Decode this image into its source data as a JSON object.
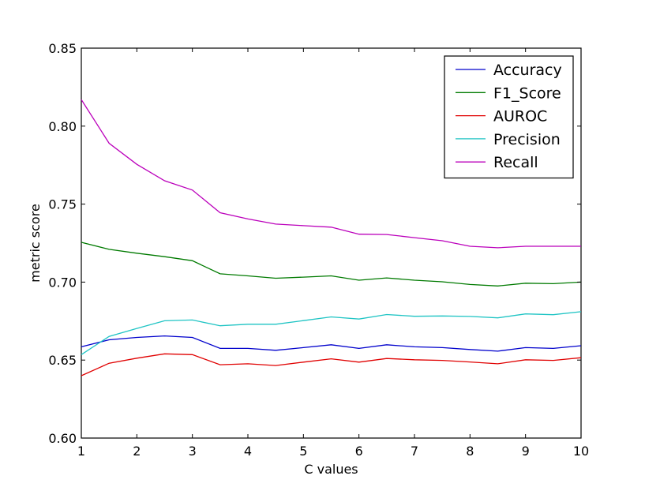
{
  "chart_data": {
    "type": "line",
    "xlabel": "C values",
    "ylabel": "metric score",
    "xlim": [
      1,
      10
    ],
    "ylim": [
      0.6,
      0.85
    ],
    "xticks": [
      1,
      2,
      3,
      4,
      5,
      6,
      7,
      8,
      9,
      10
    ],
    "yticks": [
      "0.60",
      "0.65",
      "0.70",
      "0.75",
      "0.80",
      "0.85"
    ],
    "grid": false,
    "legend_position": "top-right",
    "x": [
      1,
      1.5,
      2,
      2.5,
      3,
      3.5,
      4,
      4.5,
      5,
      5.5,
      6,
      6.5,
      7,
      7.5,
      8,
      8.5,
      9,
      9.5,
      10
    ],
    "series": [
      {
        "name": "Accuracy",
        "color": "#0000cc",
        "values": [
          0.6585,
          0.663,
          0.6645,
          0.6655,
          0.6645,
          0.6575,
          0.6575,
          0.6563,
          0.658,
          0.6598,
          0.6575,
          0.6598,
          0.6585,
          0.658,
          0.6568,
          0.6557,
          0.658,
          0.6575,
          0.6592
        ]
      },
      {
        "name": "F1_Score",
        "color": "#007a00",
        "values": [
          0.7255,
          0.721,
          0.7185,
          0.7163,
          0.7137,
          0.7053,
          0.704,
          0.7025,
          0.7032,
          0.704,
          0.7012,
          0.7027,
          0.7012,
          0.7002,
          0.6985,
          0.6975,
          0.6993,
          0.699,
          0.7
        ]
      },
      {
        "name": "AUROC",
        "color": "#e00000",
        "values": [
          0.64,
          0.648,
          0.6512,
          0.654,
          0.6535,
          0.647,
          0.6476,
          0.6465,
          0.6487,
          0.6508,
          0.6487,
          0.651,
          0.6502,
          0.6498,
          0.6488,
          0.6476,
          0.6502,
          0.6498,
          0.6515
        ]
      },
      {
        "name": "Precision",
        "color": "#1fc4c4",
        "values": [
          0.6535,
          0.6652,
          0.6703,
          0.6752,
          0.6757,
          0.672,
          0.673,
          0.673,
          0.6753,
          0.6777,
          0.6763,
          0.6792,
          0.6781,
          0.6783,
          0.678,
          0.6771,
          0.6796,
          0.6791,
          0.681
        ]
      },
      {
        "name": "Recall",
        "color": "#bb00bb",
        "values": [
          0.817,
          0.789,
          0.7755,
          0.765,
          0.759,
          0.7445,
          0.7405,
          0.7372,
          0.7362,
          0.7352,
          0.7307,
          0.7305,
          0.7285,
          0.7265,
          0.723,
          0.722,
          0.723,
          0.723,
          0.723
        ]
      }
    ]
  }
}
